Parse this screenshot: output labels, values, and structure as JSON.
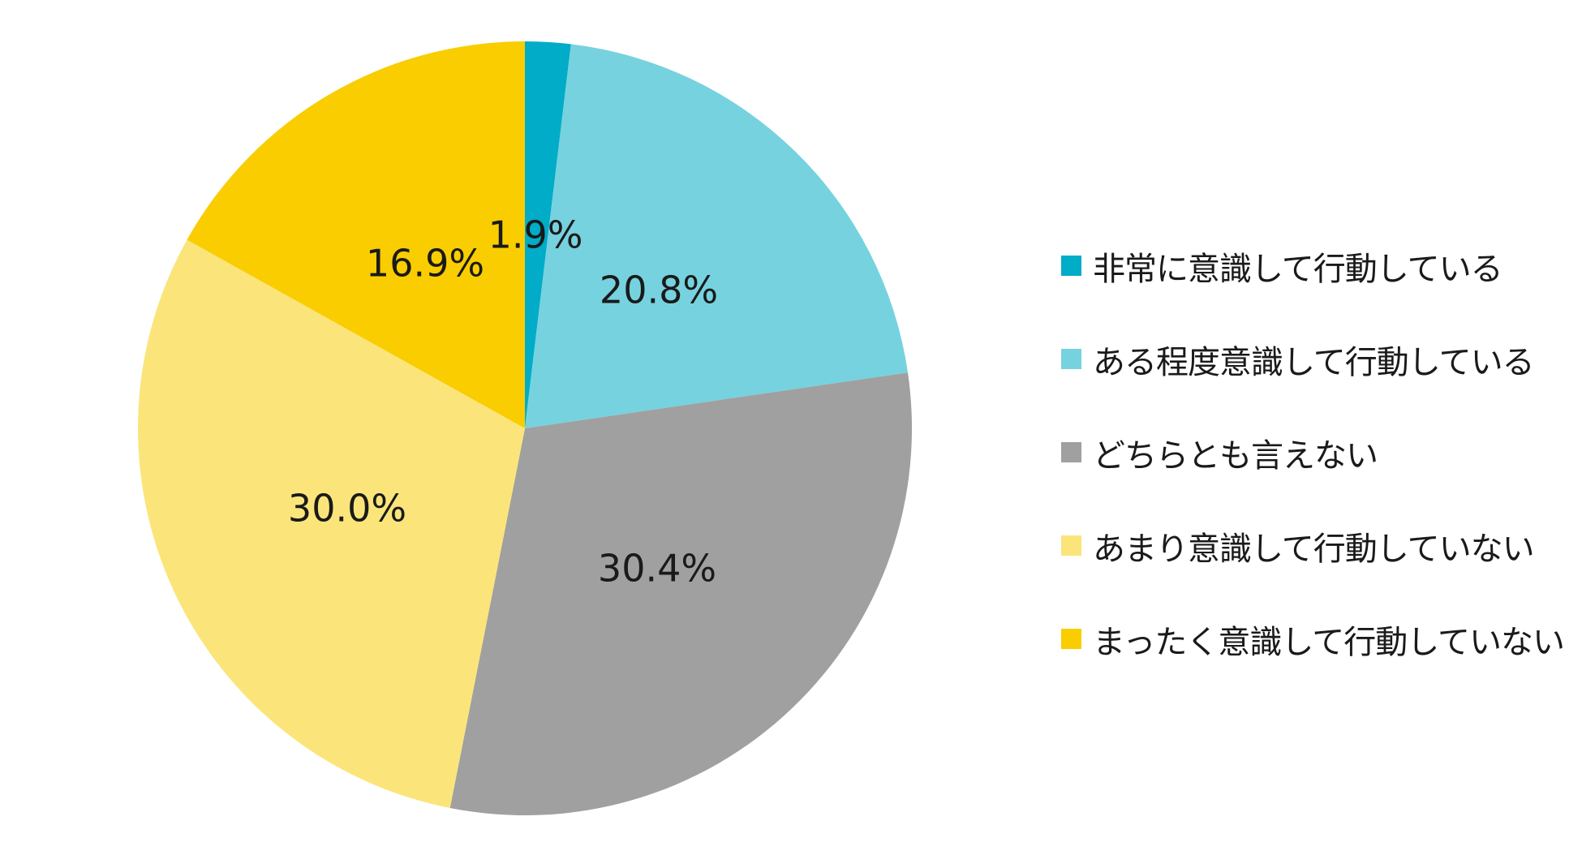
{
  "chart_data": {
    "type": "pie",
    "title": "",
    "start_angle_deg": 0,
    "direction": "clockwise",
    "legend_position": "right",
    "slices": [
      {
        "label": "非常に意識して行動している",
        "value": 1.9,
        "display": "1.9%",
        "color": "#00acc8"
      },
      {
        "label": "ある程度意識して行動している",
        "value": 20.8,
        "display": "20.8%",
        "color": "#76d2df"
      },
      {
        "label": "どちらとも言えない",
        "value": 30.4,
        "display": "30.4%",
        "color": "#a0a0a0"
      },
      {
        "label": "あまり意識して行動していない",
        "value": 30.0,
        "display": "30.0%",
        "color": "#fbe57a"
      },
      {
        "label": "まったく意識して行動していない",
        "value": 16.9,
        "display": "16.9%",
        "color": "#f9cd00"
      }
    ]
  }
}
